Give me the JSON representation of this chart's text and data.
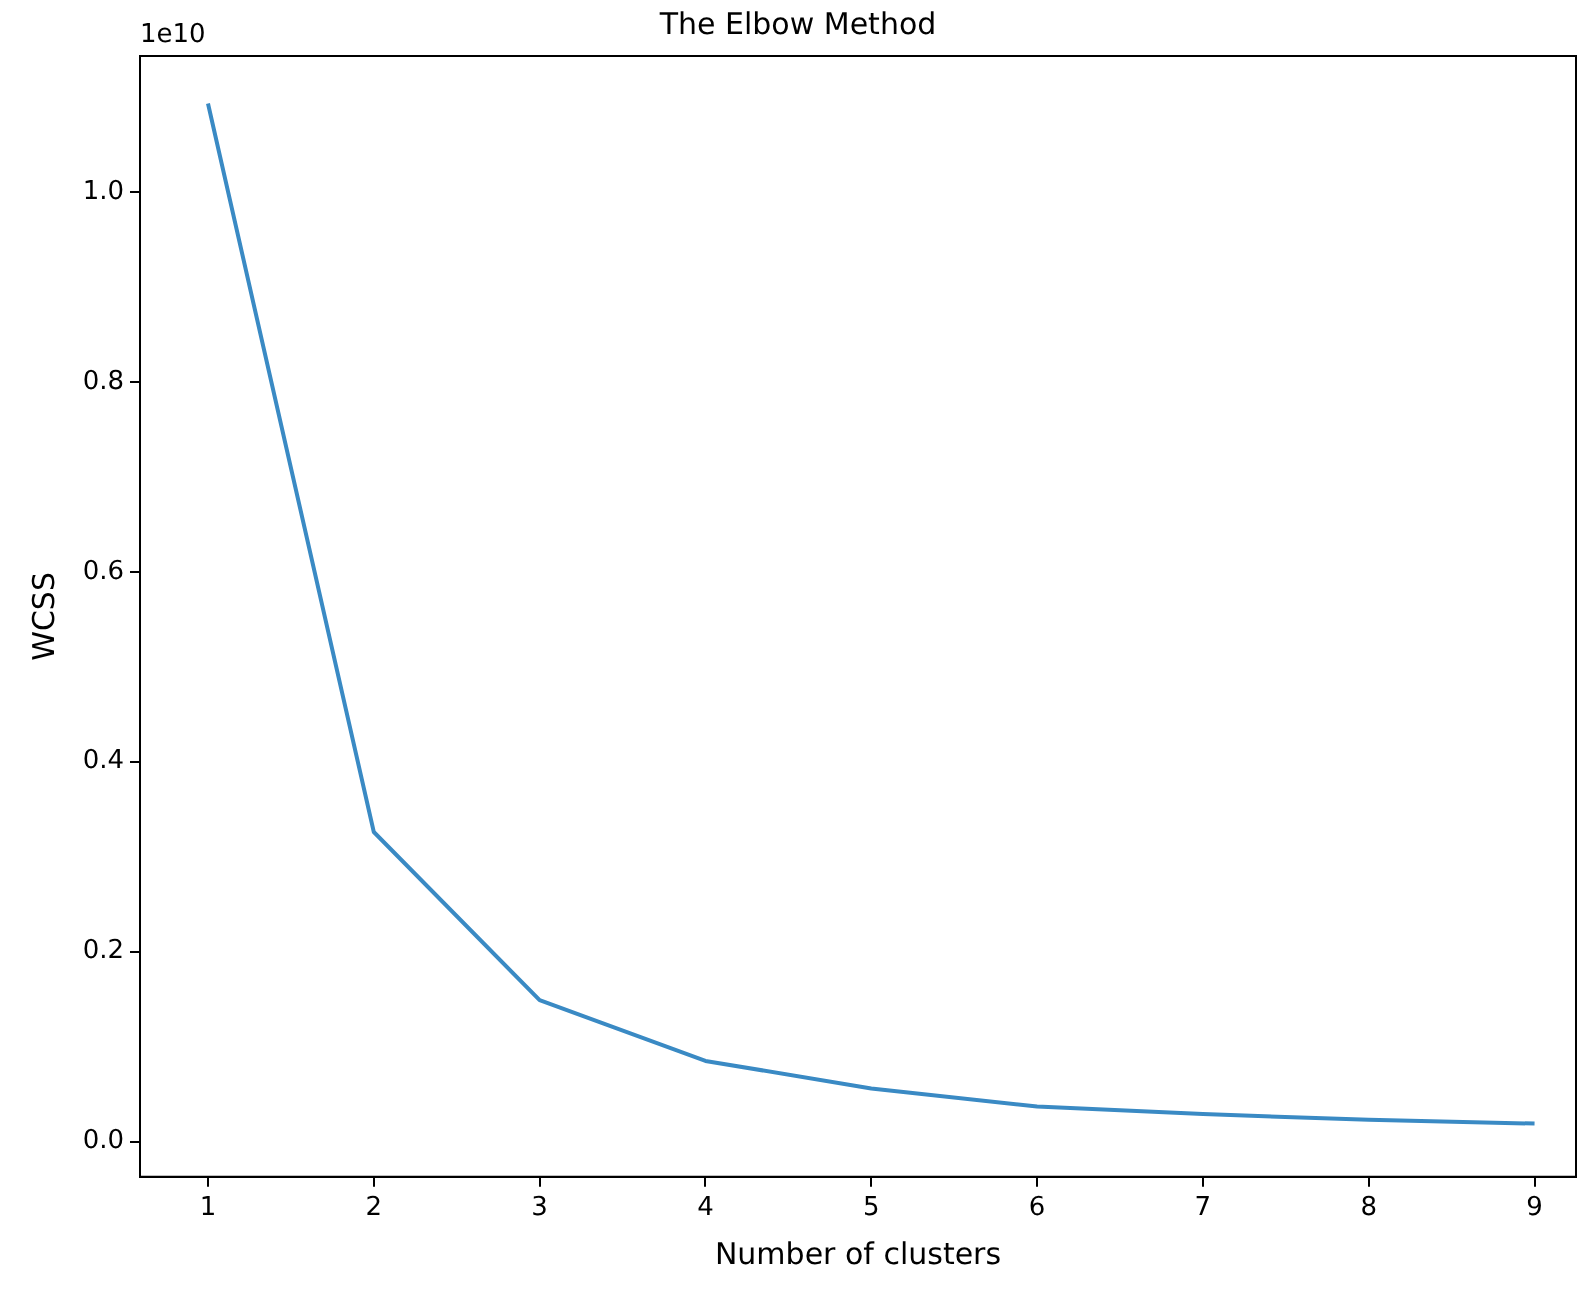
{
  "chart_data": {
    "type": "line",
    "title": "The Elbow Method",
    "xlabel": "Number of clusters",
    "ylabel": "WCSS",
    "annotations": [
      "1e10"
    ],
    "x": [
      1,
      2,
      3,
      4,
      5,
      6,
      7,
      8,
      9
    ],
    "series": [
      {
        "color": "#3a8ac4",
        "values": [
          1.093,
          0.326,
          0.149,
          0.085,
          0.056,
          0.037,
          0.029,
          0.023,
          0.019
        ]
      }
    ],
    "xlim": [
      0.59,
      9.25
    ],
    "xticks": [
      1,
      2,
      3,
      4,
      5,
      6,
      7,
      8,
      9
    ],
    "ylim": [
      -0.037,
      1.143
    ],
    "yticks": [
      {
        "value": 0,
        "label": "0.0"
      },
      {
        "value": 0.2,
        "label": "0.2"
      },
      {
        "value": 0.4,
        "label": "0.4"
      },
      {
        "value": 0.6,
        "label": "0.6"
      },
      {
        "value": 0.8,
        "label": "0.8"
      },
      {
        "value": 1.0,
        "label": "1.0"
      }
    ],
    "grid": false,
    "legend": false,
    "marker": "none",
    "line_style": "solid"
  }
}
